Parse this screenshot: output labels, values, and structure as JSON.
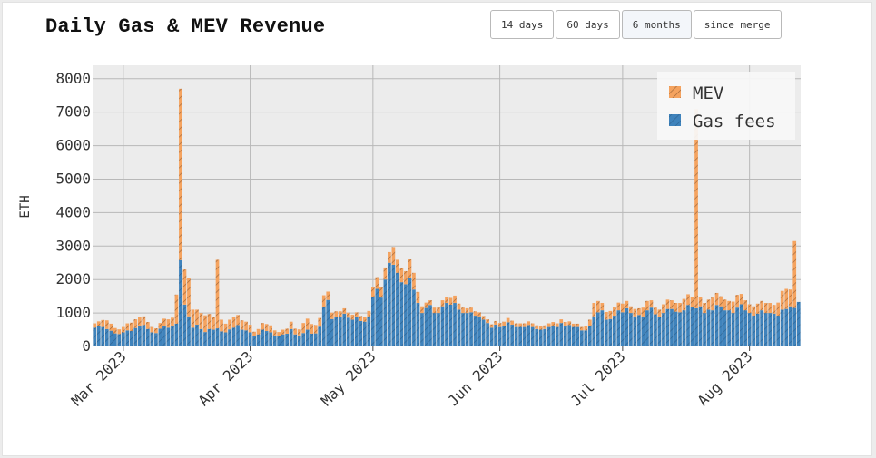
{
  "header": {
    "title": "Daily Gas & MEV Revenue"
  },
  "range_buttons": [
    {
      "label": "14 days",
      "active": false
    },
    {
      "label": "60 days",
      "active": false
    },
    {
      "label": "6 months",
      "active": true
    },
    {
      "label": "since merge",
      "active": false
    }
  ],
  "colors": {
    "gas": "#3f83bc",
    "mev": "#f5a35f",
    "plot_bg": "#ececec",
    "grid": "#b8b8b8"
  },
  "chart_data": {
    "type": "bar",
    "stacked": true,
    "title": "Daily Gas & MEV Revenue",
    "ylabel": "ETH",
    "xlabel": "",
    "ylim": [
      0,
      8400
    ],
    "yticks": [
      0,
      1000,
      2000,
      3000,
      4000,
      5000,
      6000,
      7000,
      8000
    ],
    "x_start": "2023-02-22",
    "xticks": [
      {
        "date": "2023-03-01",
        "label": "Mar 2023"
      },
      {
        "date": "2023-04-01",
        "label": "Apr 2023"
      },
      {
        "date": "2023-05-01",
        "label": "May 2023"
      },
      {
        "date": "2023-06-01",
        "label": "Jun 2023"
      },
      {
        "date": "2023-07-01",
        "label": "Jul 2023"
      },
      {
        "date": "2023-08-01",
        "label": "Aug 2023"
      }
    ],
    "legend": {
      "position": "top-right",
      "entries": [
        "MEV",
        "Gas fees"
      ]
    },
    "grid": true,
    "series": [
      {
        "name": "Gas fees",
        "values": [
          560,
          620,
          580,
          520,
          470,
          390,
          370,
          420,
          480,
          460,
          550,
          600,
          640,
          520,
          420,
          400,
          530,
          610,
          560,
          600,
          680,
          2580,
          1250,
          900,
          560,
          650,
          520,
          430,
          520,
          500,
          540,
          450,
          420,
          510,
          560,
          640,
          500,
          480,
          420,
          300,
          360,
          500,
          460,
          420,
          330,
          300,
          360,
          380,
          520,
          360,
          330,
          400,
          500,
          380,
          390,
          590,
          1190,
          1390,
          820,
          880,
          880,
          980,
          860,
          800,
          880,
          760,
          740,
          900,
          1480,
          1720,
          1460,
          2000,
          2500,
          2440,
          2200,
          1920,
          1860,
          2060,
          1700,
          1300,
          1000,
          1150,
          1240,
          1000,
          1000,
          1200,
          1300,
          1250,
          1300,
          1100,
          1000,
          1000,
          1020,
          920,
          900,
          800,
          700,
          560,
          650,
          580,
          620,
          720,
          650,
          580,
          580,
          580,
          640,
          580,
          520,
          500,
          520,
          580,
          620,
          580,
          700,
          620,
          640,
          580,
          580,
          480,
          480,
          600,
          900,
          1020,
          1080,
          800,
          820,
          920,
          1080,
          1020,
          1140,
          1000,
          900,
          940,
          900,
          1080,
          1160,
          960,
          880,
          1000,
          1120,
          1120,
          1040,
          1020,
          1080,
          1240,
          1180,
          1140,
          1200,
          1000,
          1100,
          1080,
          1240,
          1200,
          1080,
          1080,
          1000,
          1160,
          1260,
          1080,
          1000,
          920,
          980,
          1080,
          1000,
          1000,
          980,
          920,
          1100,
          1120,
          1200,
          1150,
          1330
        ]
      },
      {
        "name": "MEV",
        "values": [
          130,
          130,
          210,
          260,
          210,
          160,
          140,
          160,
          210,
          250,
          260,
          280,
          260,
          210,
          160,
          140,
          170,
          220,
          250,
          260,
          870,
          5120,
          1050,
          1150,
          540,
          450,
          480,
          500,
          450,
          380,
          2050,
          350,
          260,
          290,
          310,
          300,
          280,
          260,
          230,
          140,
          160,
          200,
          210,
          210,
          150,
          130,
          140,
          150,
          220,
          170,
          180,
          300,
          330,
          290,
          250,
          260,
          340,
          250,
          190,
          170,
          170,
          160,
          150,
          150,
          140,
          150,
          150,
          160,
          300,
          350,
          310,
          360,
          320,
          530,
          390,
          420,
          390,
          540,
          500,
          330,
          200,
          160,
          140,
          160,
          160,
          180,
          180,
          200,
          220,
          180,
          160,
          140,
          140,
          130,
          120,
          110,
          110,
          100,
          110,
          120,
          120,
          130,
          120,
          110,
          110,
          110,
          110,
          110,
          110,
          120,
          110,
          110,
          110,
          110,
          110,
          110,
          110,
          100,
          100,
          100,
          120,
          200,
          400,
          340,
          220,
          230,
          240,
          270,
          230,
          260,
          220,
          200,
          220,
          200,
          260,
          280,
          220,
          200,
          220,
          260,
          280,
          260,
          260,
          280,
          340,
          320,
          300,
          5950,
          280,
          300,
          300,
          380,
          360,
          300,
          320,
          280,
          340,
          380,
          310,
          300,
          260,
          280,
          300,
          280,
          300,
          300,
          260,
          390,
          560,
          600,
          500,
          2000
        ]
      }
    ]
  }
}
